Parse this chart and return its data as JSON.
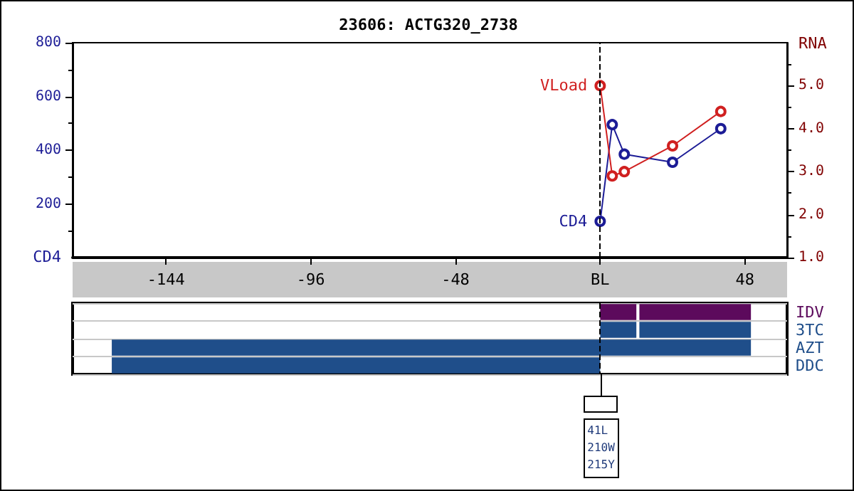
{
  "chart_data": [
    {
      "type": "line",
      "title": "23606: ACTG320_2738",
      "ylabel": "CD4",
      "y2label": "RNA",
      "xlim": [
        -175,
        62
      ],
      "xticks": [
        -144,
        -96,
        -48,
        {
          "value": 0,
          "label": "BL"
        },
        48
      ],
      "ylim": [
        0,
        800
      ],
      "yticks": [
        200,
        400,
        600,
        800
      ],
      "y2lim": [
        1,
        6
      ],
      "y2ticks": [
        {
          "value": 1,
          "label": "1.0"
        },
        {
          "value": 2,
          "label": "2.0"
        },
        {
          "value": 3,
          "label": "3.0"
        },
        {
          "value": 4,
          "label": "4.0"
        },
        {
          "value": 5,
          "label": "5.0"
        }
      ],
      "marker": "circle",
      "line_style": "solid",
      "grid": false,
      "ref_lines": [
        {
          "axis": "x",
          "value": 0,
          "color": "#000000",
          "line_style": "dashed"
        }
      ],
      "series": [
        {
          "name": "CD4",
          "color": "#1c1c96",
          "x": [
            0,
            4,
            8,
            24,
            40
          ],
          "values": [
            135,
            495,
            385,
            355,
            480
          ]
        },
        {
          "name": "VLoad",
          "color": "#d02020",
          "axis": "y2",
          "x": [
            0,
            4,
            8,
            24,
            40
          ],
          "values": [
            5.0,
            2.9,
            3.0,
            3.6,
            4.4
          ]
        }
      ]
    },
    {
      "type": "bar",
      "orientation": "horizontal",
      "categories": [
        "IDV",
        "3TC",
        "AZT",
        "DDC"
      ],
      "xlim": [
        -175,
        62
      ],
      "tick_labels": "y",
      "grid": "y",
      "ref_lines": [
        {
          "axis": "x",
          "value": 0,
          "color": "#000000",
          "line_style": "dashed"
        }
      ],
      "annotations": [
        "41L\n210W\n215Y"
      ],
      "series": [
        {
          "colors": [
            "#5c0a5c",
            "#1f4e8a",
            "#1f4e8a",
            "#1f4e8a"
          ],
          "base": [
            0,
            0,
            -162,
            -162
          ],
          "values": [
            12,
            12,
            212,
            162
          ]
        },
        {
          "colors": [
            "#5c0a5c",
            "#1f4e8a",
            null,
            null
          ],
          "base": [
            13,
            13,
            null,
            null
          ],
          "values": [
            37,
            37,
            null,
            null
          ]
        }
      ]
    }
  ]
}
